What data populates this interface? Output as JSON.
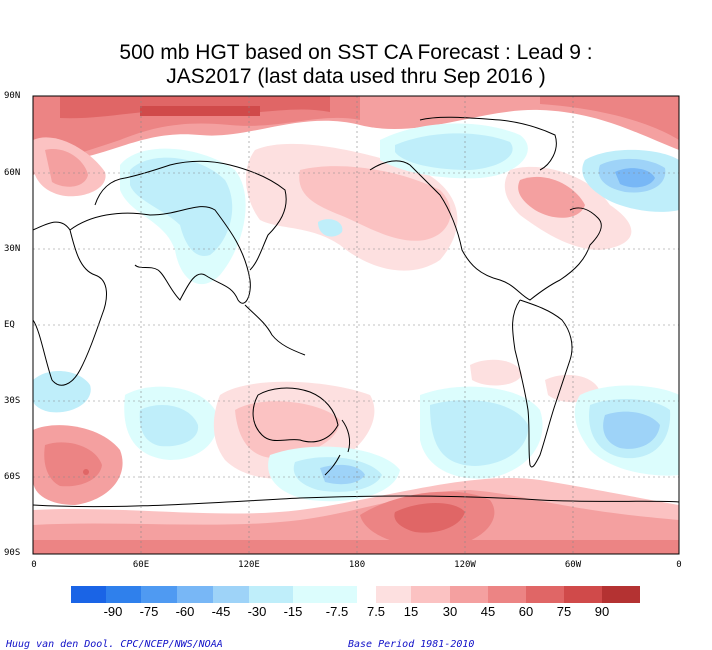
{
  "title": {
    "line1": "500 mb HGT based on SST CA Forecast : Lead 9 :",
    "line2": "JAS2017 (last data used thru Sep 2016 )"
  },
  "axes": {
    "lat_labels": [
      "90N",
      "60N",
      "30N",
      "EQ",
      "30S",
      "60S",
      "90S"
    ],
    "lon_labels": [
      "0",
      "60E",
      "120E",
      "180",
      "120W",
      "60W",
      "0"
    ]
  },
  "colorbar": {
    "labels": [
      "-90",
      "-75",
      "-60",
      "-45",
      "-30",
      "-15",
      "-7.5",
      "7.5",
      "15",
      "30",
      "45",
      "60",
      "75",
      "90"
    ],
    "negative_colors": [
      "#1a64e6",
      "#2f80ec",
      "#4f9af2",
      "#78b7f6",
      "#9ed3f8",
      "#bfeefa",
      "#dcfdfd"
    ],
    "positive_colors": [
      "#fde0e0",
      "#fbc2c2",
      "#f4a0a0",
      "#ec8484",
      "#e06666",
      "#d04a4a",
      "#b43232"
    ]
  },
  "footer": {
    "credit": "Huug van den Dool. CPC/NCEP/NWS/NOAA",
    "base_period": "Base Period 1981-2010"
  }
}
